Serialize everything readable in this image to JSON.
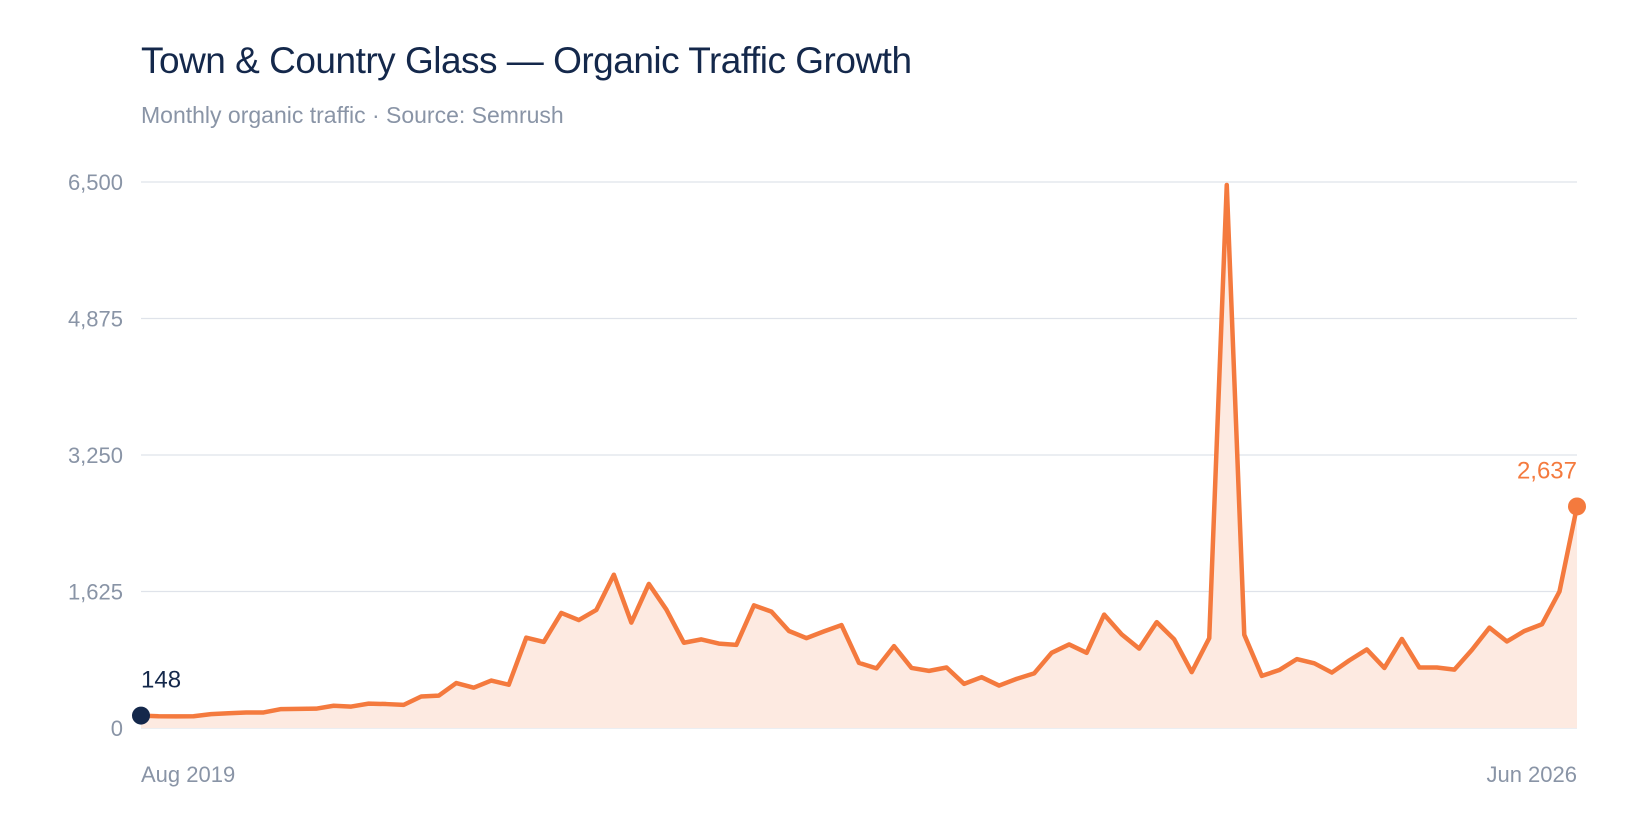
{
  "chart_data": {
    "type": "area",
    "title": "Town & Country Glass — Organic Traffic Growth",
    "subtitle": "Monthly organic traffic · Source: Semrush",
    "xlabel": "",
    "ylabel": "",
    "x_start": "Aug 2019",
    "x_end": "Jun 2026",
    "x_tick_labels": [
      "Aug 2019",
      "Jun 2026"
    ],
    "ylim": [
      0,
      6500
    ],
    "y_ticks": [
      0,
      1625,
      3250,
      4875,
      6500
    ],
    "y_tick_labels": [
      "0",
      "1,625",
      "3,250",
      "4,875",
      "6,500"
    ],
    "grid": true,
    "legend": "none",
    "colors": {
      "line": "#f47a3e",
      "fill": "#fdeae1",
      "start_marker": "#14284b",
      "end_marker": "#f47a3e",
      "grid": "#dfe3ea",
      "tick_text": "#8994a6",
      "title": "#14284b"
    },
    "series": [
      {
        "values": [
          148,
          140,
          138,
          140,
          165,
          175,
          185,
          185,
          225,
          228,
          230,
          265,
          255,
          290,
          285,
          275,
          375,
          385,
          535,
          480,
          565,
          515,
          1075,
          1025,
          1370,
          1285,
          1405,
          1825,
          1255,
          1715,
          1410,
          1015,
          1055,
          1005,
          990,
          1460,
          1385,
          1155,
          1070,
          1150,
          1225,
          775,
          710,
          975,
          715,
          680,
          720,
          525,
          605,
          505,
          585,
          650,
          895,
          995,
          895,
          1350,
          1115,
          945,
          1260,
          1055,
          665,
          1070,
          6465,
          1110,
          620,
          690,
          820,
          770,
          660,
          805,
          935,
          715,
          1060,
          720,
          720,
          695,
          930,
          1195,
          1030,
          1155,
          1235,
          1625,
          2637
        ]
      }
    ],
    "annotations": [
      {
        "label": "148",
        "value": 148,
        "position": "start"
      },
      {
        "label": "2,637",
        "value": 2637,
        "position": "end"
      }
    ]
  }
}
